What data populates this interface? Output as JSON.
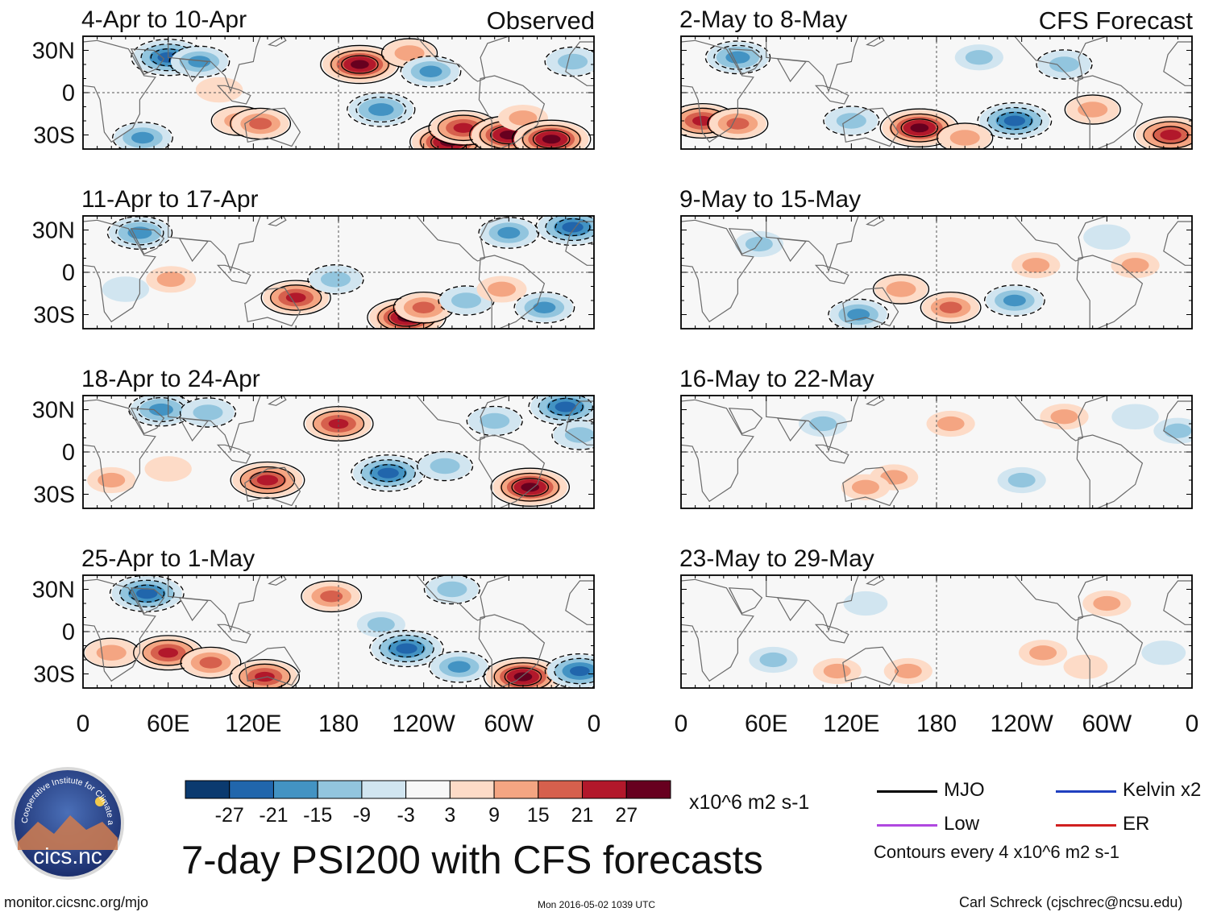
{
  "chart_data": {
    "type": "heatmap",
    "title": "7-day PSI200 with CFS forecasts",
    "variable": "PSI200",
    "units": "x10^6 m2 s-1",
    "column_headers": [
      "Observed",
      "CFS Forecast"
    ],
    "x_ticks": [
      "0",
      "60E",
      "120E",
      "180",
      "120W",
      "60W",
      "0"
    ],
    "x_range_deg": [
      0,
      360
    ],
    "y_ticks": [
      "30N",
      "0",
      "30S"
    ],
    "y_range_deg": [
      -40,
      40
    ],
    "panels": [
      {
        "period": "4-Apr to 10-Apr",
        "source": "observed",
        "col": 0,
        "row": 0,
        "blobs": [
          [
            60,
            25,
            -24
          ],
          [
            82,
            22,
            -15
          ],
          [
            96,
            2,
            8
          ],
          [
            110,
            -20,
            12
          ],
          [
            125,
            -22,
            15
          ],
          [
            195,
            20,
            27
          ],
          [
            210,
            -12,
            -20
          ],
          [
            230,
            28,
            12
          ],
          [
            245,
            15,
            -15
          ],
          [
            258,
            -35,
            27
          ],
          [
            268,
            -25,
            21
          ],
          [
            300,
            -30,
            27
          ],
          [
            310,
            -18,
            10
          ],
          [
            330,
            -33,
            27
          ],
          [
            345,
            22,
            -12
          ],
          [
            42,
            -32,
            -15
          ]
        ]
      },
      {
        "period": "11-Apr to 17-Apr",
        "source": "observed",
        "col": 0,
        "row": 1,
        "blobs": [
          [
            40,
            28,
            -18
          ],
          [
            62,
            -5,
            10
          ],
          [
            30,
            -12,
            -8
          ],
          [
            150,
            -18,
            21
          ],
          [
            178,
            -5,
            -12
          ],
          [
            228,
            -32,
            27
          ],
          [
            240,
            -25,
            15
          ],
          [
            270,
            -20,
            -12
          ],
          [
            295,
            -12,
            10
          ],
          [
            325,
            -25,
            -15
          ],
          [
            300,
            28,
            -15
          ],
          [
            345,
            32,
            -24
          ]
        ]
      },
      {
        "period": "18-Apr to 24-Apr",
        "source": "observed",
        "col": 0,
        "row": 2,
        "blobs": [
          [
            55,
            30,
            -18
          ],
          [
            88,
            28,
            -12
          ],
          [
            130,
            -20,
            24
          ],
          [
            180,
            20,
            21
          ],
          [
            215,
            -15,
            -24
          ],
          [
            255,
            -10,
            -12
          ],
          [
            290,
            22,
            -12
          ],
          [
            315,
            -25,
            27
          ],
          [
            340,
            32,
            -24
          ],
          [
            350,
            12,
            -12
          ],
          [
            60,
            -12,
            8
          ],
          [
            20,
            -20,
            9
          ]
        ]
      },
      {
        "period": "25-Apr to 1-May",
        "source": "observed",
        "col": 0,
        "row": 3,
        "blobs": [
          [
            45,
            27,
            -24
          ],
          [
            20,
            -15,
            12
          ],
          [
            60,
            -15,
            21
          ],
          [
            90,
            -22,
            15
          ],
          [
            128,
            -32,
            21
          ],
          [
            175,
            25,
            15
          ],
          [
            210,
            5,
            -9
          ],
          [
            228,
            -12,
            -24
          ],
          [
            265,
            -25,
            -15
          ],
          [
            260,
            30,
            -12
          ],
          [
            310,
            -32,
            27
          ],
          [
            350,
            -28,
            -21
          ]
        ]
      },
      {
        "period": "2-May to 8-May",
        "source": "cfs",
        "col": 1,
        "row": 0,
        "blobs": [
          [
            40,
            25,
            -18
          ],
          [
            15,
            -20,
            21
          ],
          [
            40,
            -22,
            15
          ],
          [
            120,
            -20,
            -12
          ],
          [
            168,
            -25,
            27
          ],
          [
            235,
            -20,
            -24
          ],
          [
            210,
            25,
            -9
          ],
          [
            270,
            20,
            -12
          ],
          [
            290,
            -12,
            12
          ],
          [
            345,
            -30,
            24
          ],
          [
            200,
            -32,
            12
          ]
        ]
      },
      {
        "period": "9-May to 15-May",
        "source": "cfs",
        "col": 1,
        "row": 1,
        "blobs": [
          [
            55,
            20,
            -9
          ],
          [
            125,
            -30,
            -15
          ],
          [
            155,
            -12,
            12
          ],
          [
            190,
            -25,
            15
          ],
          [
            235,
            -20,
            -15
          ],
          [
            250,
            5,
            9
          ],
          [
            320,
            5,
            9
          ],
          [
            300,
            25,
            -8
          ]
        ]
      },
      {
        "period": "16-May to 22-May",
        "source": "cfs",
        "col": 1,
        "row": 2,
        "blobs": [
          [
            100,
            20,
            -9
          ],
          [
            150,
            -18,
            9
          ],
          [
            190,
            20,
            9
          ],
          [
            240,
            -20,
            -9
          ],
          [
            270,
            25,
            9
          ],
          [
            320,
            25,
            -8
          ],
          [
            350,
            15,
            -9
          ],
          [
            130,
            -25,
            9
          ]
        ]
      },
      {
        "period": "23-May to 29-May",
        "source": "cfs",
        "col": 1,
        "row": 3,
        "blobs": [
          [
            65,
            -20,
            -9
          ],
          [
            110,
            -28,
            9
          ],
          [
            160,
            -28,
            9
          ],
          [
            130,
            20,
            -6
          ],
          [
            255,
            -15,
            9
          ],
          [
            285,
            -25,
            6
          ],
          [
            300,
            20,
            9
          ],
          [
            340,
            -15,
            -6
          ]
        ]
      }
    ],
    "colorbar": {
      "labels": [
        "-27",
        "-21",
        "-15",
        "-9",
        "-3",
        "3",
        "9",
        "15",
        "21",
        "27"
      ],
      "colors": [
        "#0b3a6f",
        "#2166ac",
        "#4393c3",
        "#92c5de",
        "#d1e5f0",
        "#f7f7f7",
        "#fddbc7",
        "#f4a582",
        "#d6604d",
        "#b2182b",
        "#67001f"
      ]
    },
    "legend": [
      {
        "label": "MJO",
        "color": "#000000"
      },
      {
        "label": "Kelvin x2",
        "color": "#2040c0"
      },
      {
        "label": "Low",
        "color": "#b048e0"
      },
      {
        "label": "ER",
        "color": "#d02020"
      }
    ],
    "contour_note": "Contours every 4 x10^6 m2 s-1"
  },
  "logo": {
    "text": "cics.nc",
    "ring_text": "Cooperative Institute for Climate and Satellites"
  },
  "footer": {
    "url": "monitor.cicsnc.org/mjo",
    "timestamp": "Mon 2016-05-02 1039 UTC",
    "author": "Carl Schreck (cjschrec@ncsu.edu)"
  }
}
